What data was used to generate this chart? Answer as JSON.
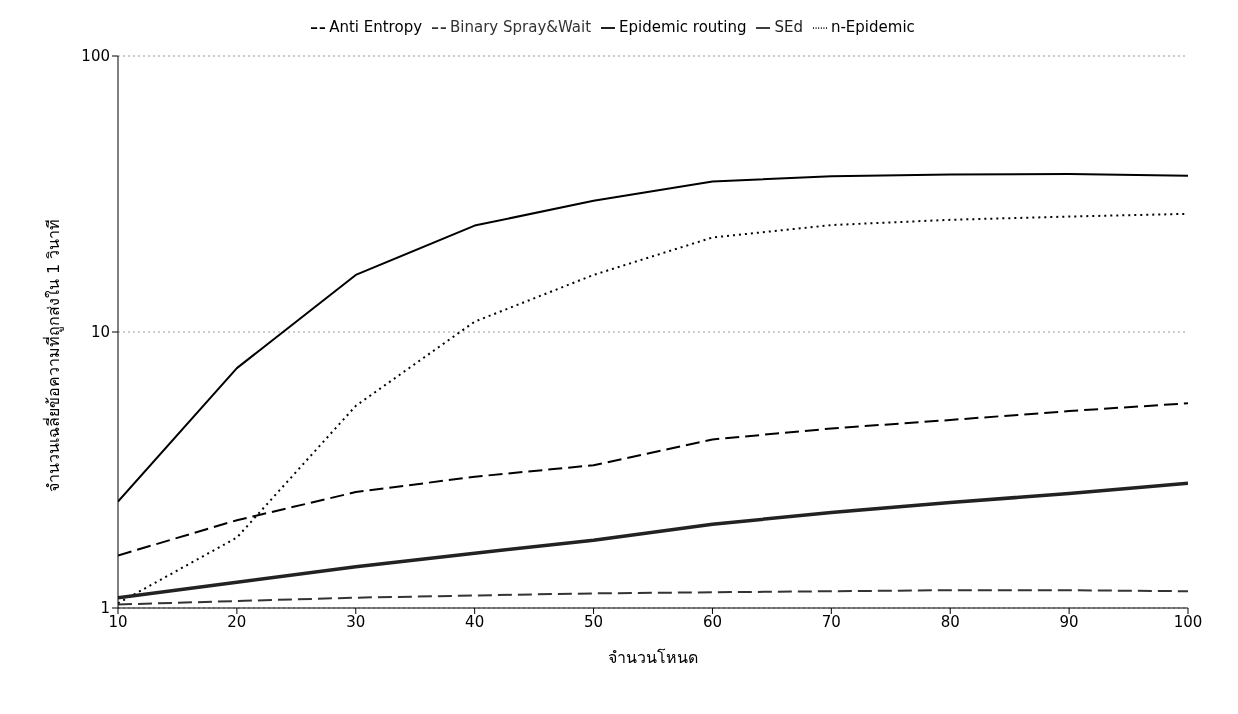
{
  "chart_data": {
    "type": "line",
    "xlabel": "จำนวนโหนด",
    "ylabel": "จำนวนเฉลี่ยข้อความที่ถูกส่งใน 1 วินาที",
    "x": [
      10,
      20,
      30,
      40,
      50,
      60,
      70,
      80,
      90,
      100
    ],
    "series": [
      {
        "name": "Epidemic routing",
        "color": "#000000",
        "line_style": "solid",
        "values": [
          2.43,
          7.4,
          16.1,
          24.3,
          29.9,
          35.1,
          36.7,
          37.2,
          37.4,
          36.8
        ]
      },
      {
        "name": "n-Epidemic",
        "color": "#000000",
        "line_style": "dotted",
        "values": [
          1.04,
          1.8,
          5.4,
          10.9,
          16.1,
          22.0,
          24.4,
          25.5,
          26.2,
          26.8
        ]
      },
      {
        "name": "Anti Entropy",
        "color": "#000000",
        "line_style": "dashed",
        "values": [
          1.55,
          2.08,
          2.63,
          2.99,
          3.29,
          4.08,
          4.47,
          4.8,
          5.17,
          5.52
        ]
      },
      {
        "name": "SEd",
        "color": "#222222",
        "line_style": "solid",
        "values": [
          1.09,
          1.24,
          1.41,
          1.58,
          1.76,
          2.01,
          2.22,
          2.41,
          2.6,
          2.83
        ]
      },
      {
        "name": "Binary Spray&Wait",
        "color": "#333333",
        "line_style": "dashed",
        "values": [
          1.03,
          1.06,
          1.09,
          1.11,
          1.13,
          1.14,
          1.15,
          1.16,
          1.16,
          1.15
        ]
      }
    ],
    "xlim": [
      10,
      100
    ],
    "xticks": [
      10,
      20,
      30,
      40,
      50,
      60,
      70,
      80,
      90,
      100
    ],
    "ylim": [
      1,
      100
    ],
    "yticks": [
      1,
      10,
      100
    ],
    "log": "y",
    "grid": "y",
    "legend": "top",
    "marker": "none"
  }
}
